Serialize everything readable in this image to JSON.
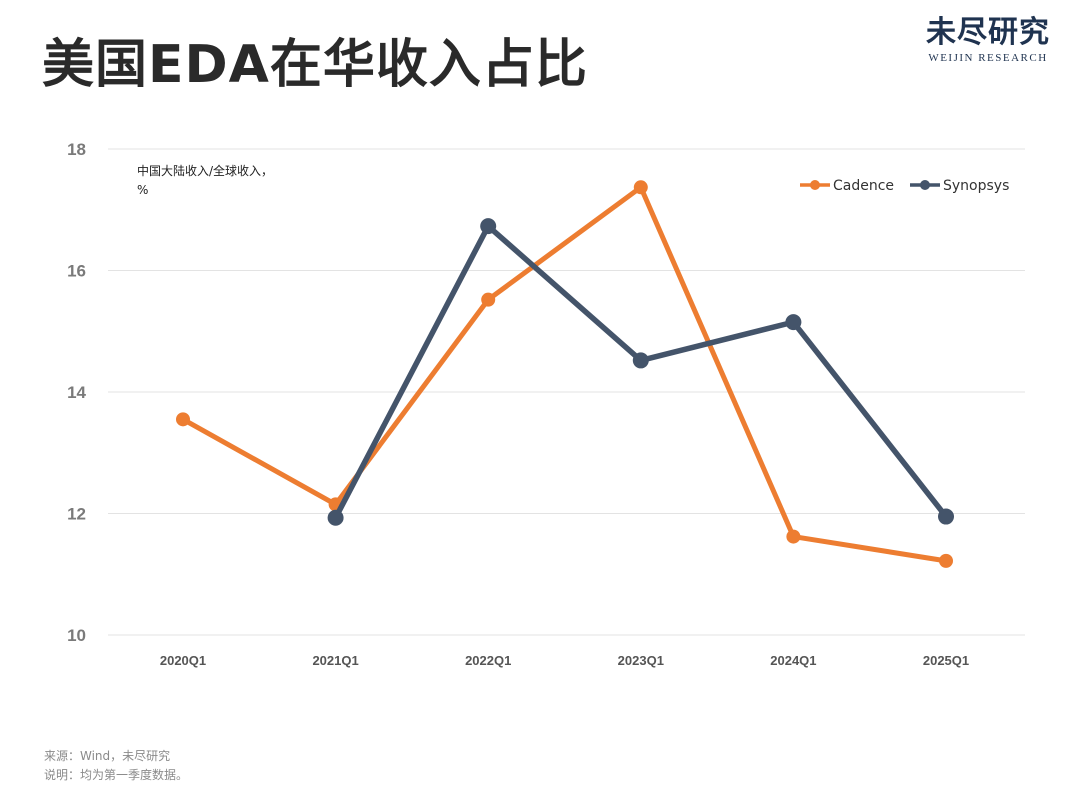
{
  "header": {
    "title": "美国EDA在华收入占比",
    "brand_cn": "未尽研究",
    "brand_en": "WEIJIN RESEARCH"
  },
  "footer": {
    "source": "来源：Wind，未尽研究",
    "note": "说明：均为第一季度数据。"
  },
  "chart_data": {
    "type": "line",
    "unit_label_line1": "中国大陆收入/全球收入，",
    "unit_label_line2": "%",
    "categories": [
      "2020Q1",
      "2021Q1",
      "2022Q1",
      "2023Q1",
      "2024Q1",
      "2025Q1"
    ],
    "ylim": [
      10,
      18
    ],
    "yticks": [
      10,
      12,
      14,
      16,
      18
    ],
    "grid": true,
    "legend_position": "top-right",
    "series": [
      {
        "name": "Cadence",
        "color": "#ed7d31",
        "values": [
          13.55,
          12.15,
          15.52,
          17.37,
          11.62,
          11.22
        ]
      },
      {
        "name": "Synopsys",
        "color": "#44546a",
        "values": [
          null,
          11.93,
          16.73,
          14.52,
          15.15,
          11.95
        ]
      }
    ]
  }
}
